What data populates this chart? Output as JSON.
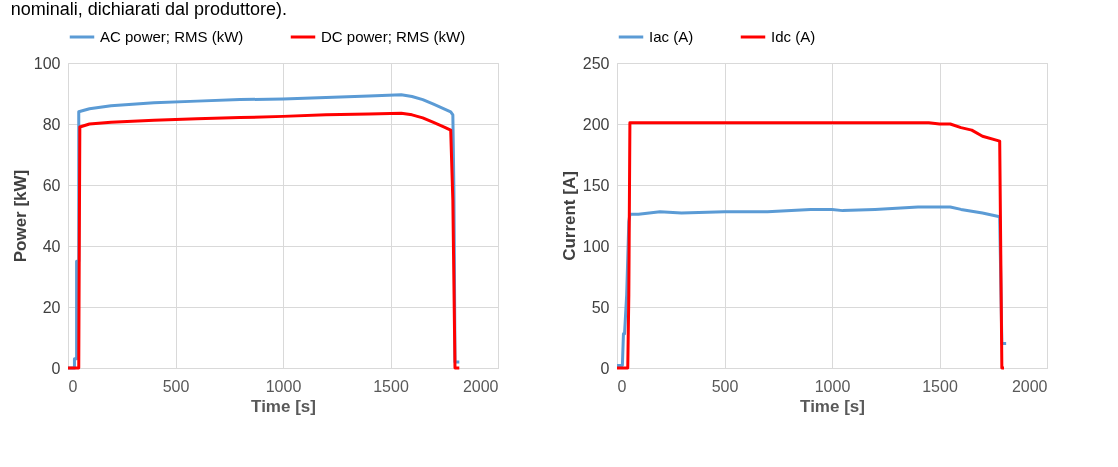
{
  "chart_data": [
    {
      "type": "line",
      "xlabel": "Time [s]",
      "ylabel": "Power [kW]",
      "xlim": [
        0,
        2000
      ],
      "xticks": [
        0,
        500,
        1000,
        1500,
        2000
      ],
      "ylim": [
        0,
        100
      ],
      "yticks": [
        0,
        20,
        40,
        60,
        80,
        100
      ],
      "grid": true,
      "legend": "top",
      "annotations": [
        "nominali, dichiarati dal produttore)."
      ],
      "series": [
        {
          "name": "AC power; RMS (kW)",
          "color": "#5b9bd5",
          "x": [
            0,
            30,
            30,
            40,
            40,
            50,
            50,
            100,
            200,
            400,
            600,
            800,
            1000,
            1200,
            1400,
            1550,
            1600,
            1650,
            1700,
            1780,
            1790,
            1795,
            1800,
            1820
          ],
          "values": [
            0,
            0,
            3,
            3,
            35,
            35,
            84,
            85,
            86,
            87,
            87.5,
            88,
            88.2,
            88.7,
            89.2,
            89.6,
            89,
            88,
            86.5,
            84,
            83,
            58,
            2,
            2
          ]
        },
        {
          "name": "DC power; RMS (kW)",
          "color": "#ff0000",
          "x": [
            0,
            50,
            52,
            55,
            100,
            200,
            400,
            600,
            800,
            1000,
            1200,
            1400,
            1550,
            1600,
            1650,
            1700,
            1750,
            1780,
            1790,
            1800,
            1820
          ],
          "values": [
            0,
            0,
            33,
            79,
            80,
            80.6,
            81.2,
            81.7,
            82.1,
            82.5,
            83,
            83.3,
            83.5,
            83,
            82,
            80.5,
            79,
            78,
            55,
            0,
            0
          ]
        }
      ]
    },
    {
      "type": "line",
      "xlabel": "Time [s]",
      "ylabel": "Current [A]",
      "xlim": [
        0,
        2000
      ],
      "xticks": [
        0,
        500,
        1000,
        1500,
        2000
      ],
      "ylim": [
        0,
        250
      ],
      "yticks": [
        0,
        50,
        100,
        150,
        200,
        250
      ],
      "grid": true,
      "legend": "top",
      "series": [
        {
          "name": "Iac (A)",
          "color": "#5b9bd5",
          "x": [
            0,
            25,
            30,
            35,
            45,
            55,
            60,
            100,
            200,
            300,
            500,
            700,
            900,
            1000,
            1050,
            1200,
            1400,
            1500,
            1550,
            1600,
            1700,
            1780,
            1790,
            1810
          ],
          "values": [
            2,
            2,
            28,
            28,
            60,
            120,
            126,
            126,
            128,
            127,
            128,
            128,
            130,
            130,
            129,
            130,
            132,
            132,
            132,
            130,
            127,
            124,
            20,
            20
          ]
        },
        {
          "name": "Idc (A)",
          "color": "#ff0000",
          "x": [
            0,
            50,
            55,
            60,
            1450,
            1500,
            1550,
            1600,
            1650,
            1700,
            1780,
            1790,
            1800
          ],
          "values": [
            0,
            0,
            60,
            201,
            201,
            200,
            200,
            197,
            195,
            190,
            186,
            0,
            0
          ]
        }
      ]
    }
  ]
}
